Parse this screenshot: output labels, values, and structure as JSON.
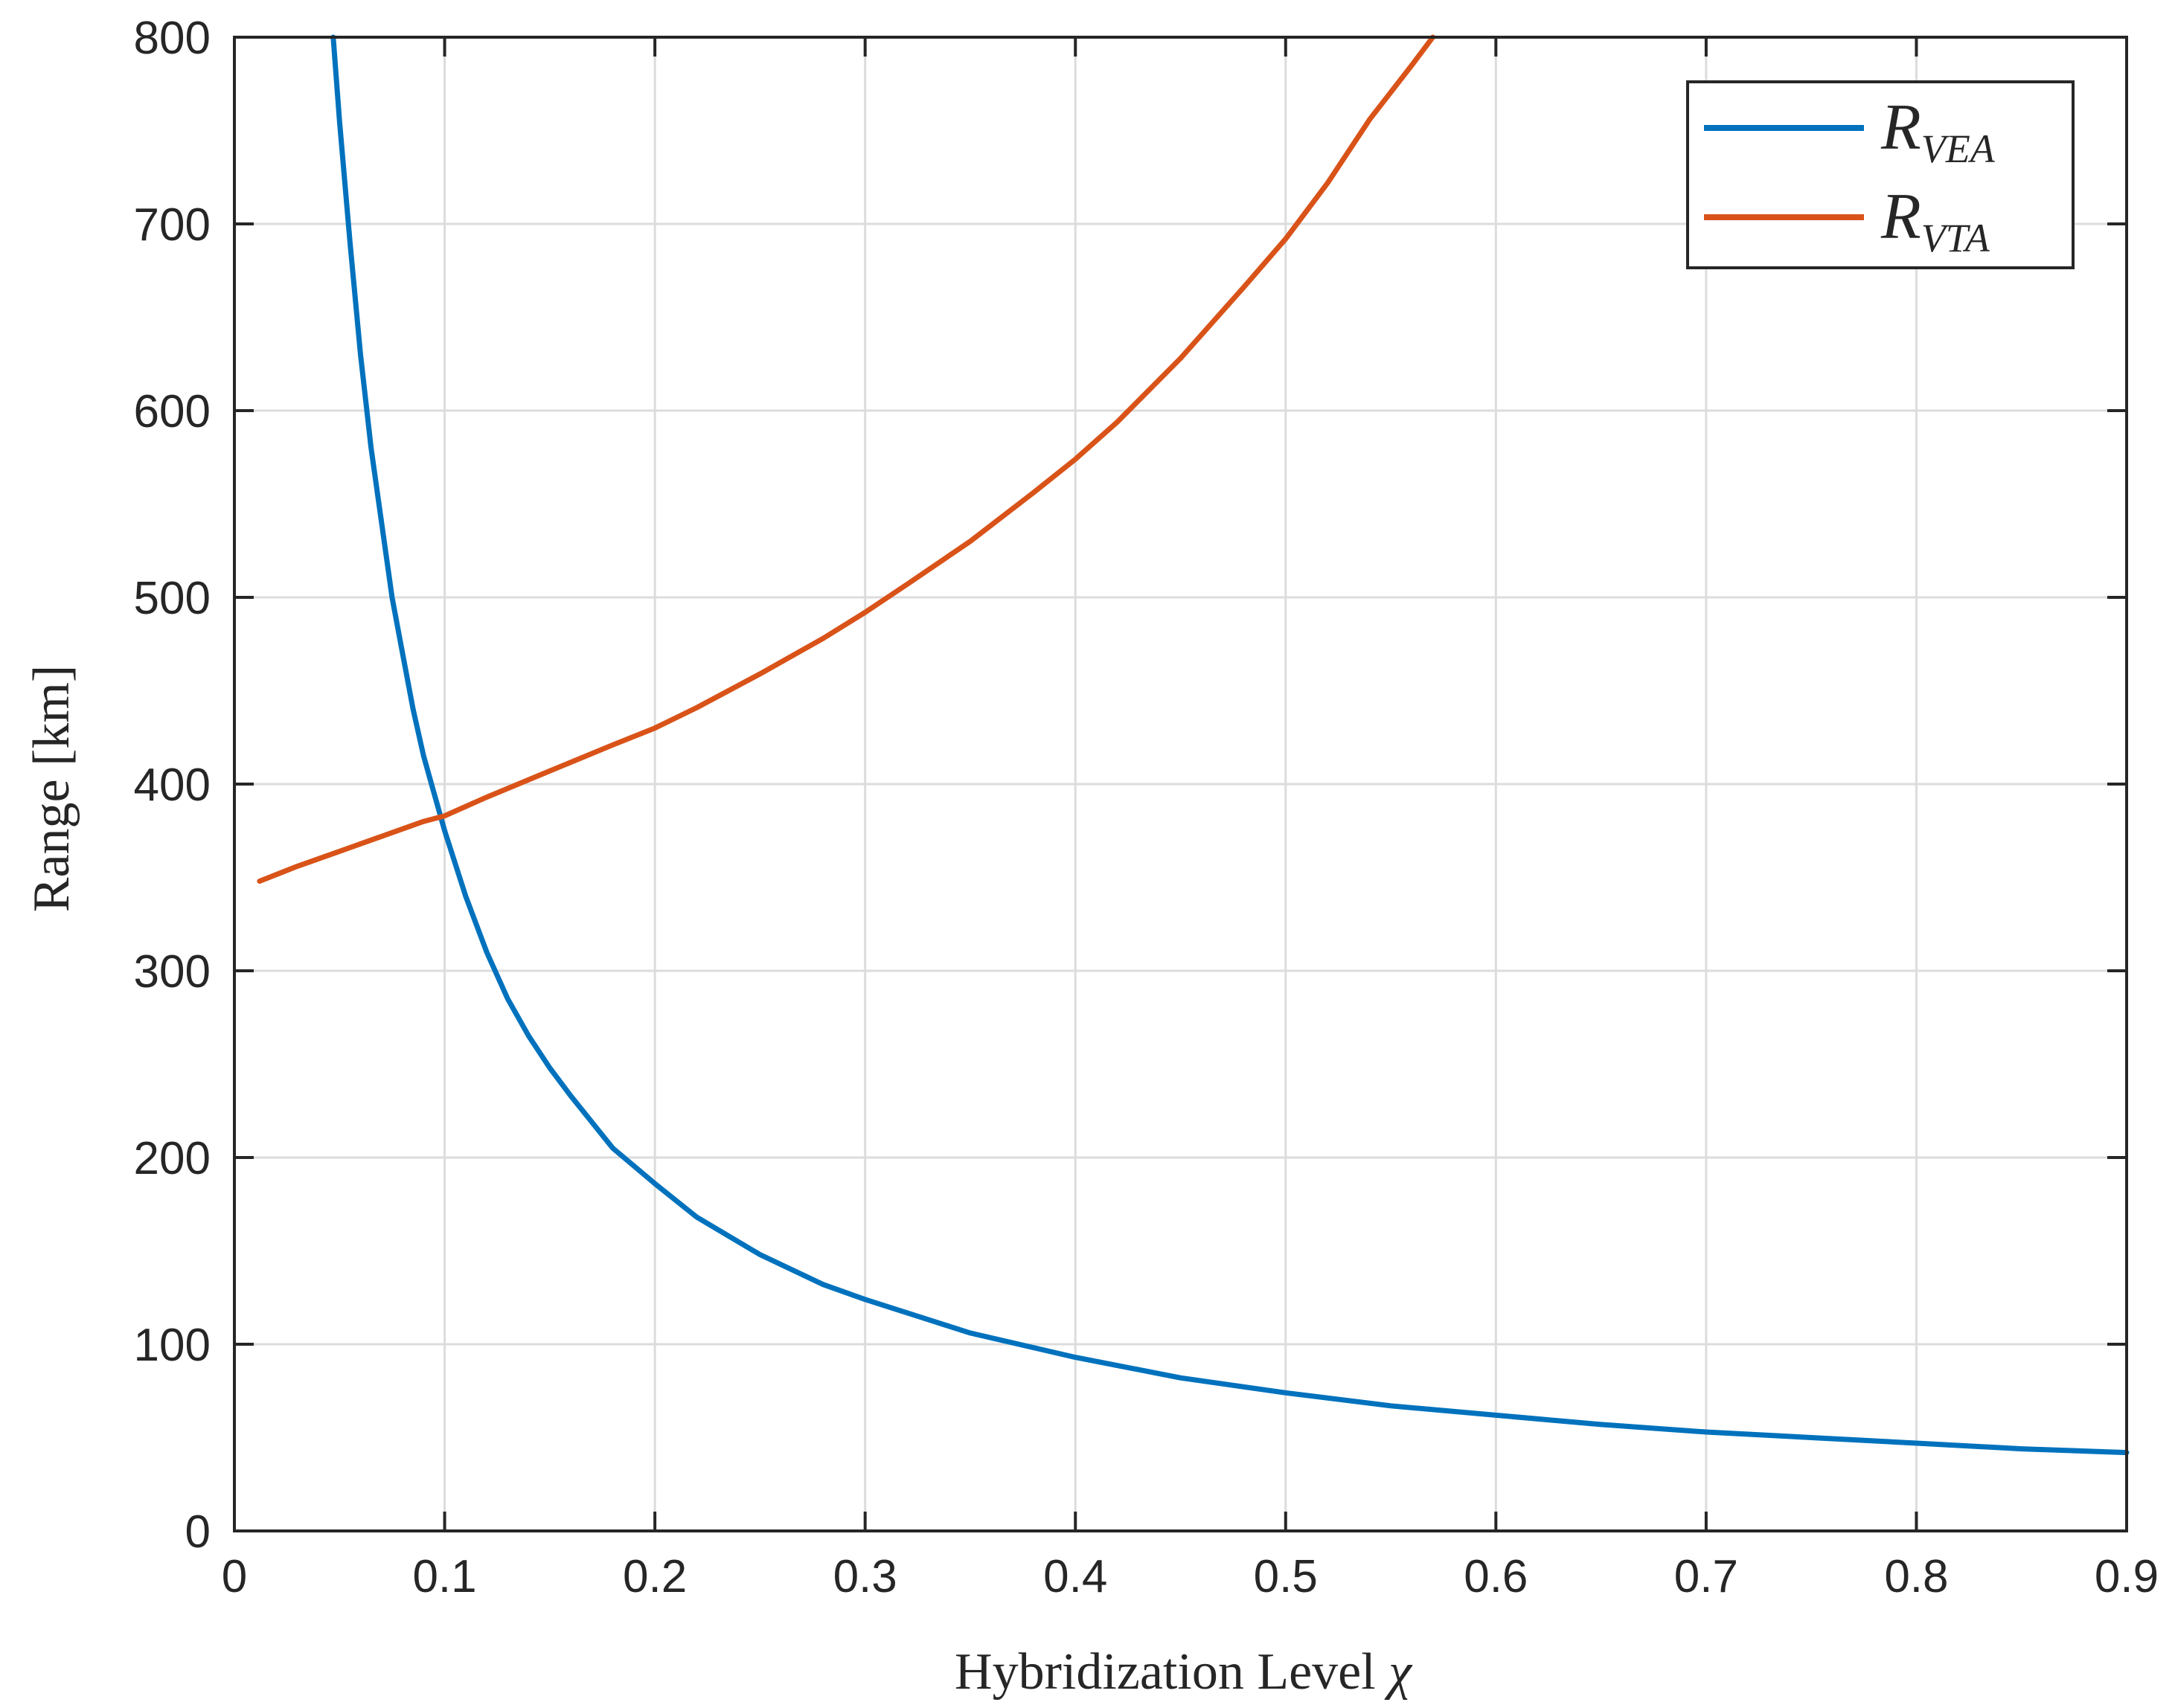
{
  "chart_data": {
    "type": "line",
    "xlabel_text": "Hybridization Level ",
    "xlabel_symbol": "χ",
    "ylabel": "Range [km]",
    "xlim": [
      0,
      0.9
    ],
    "ylim": [
      0,
      800
    ],
    "grid": true,
    "legend_position": "top-right",
    "xticks": [
      0,
      0.1,
      0.2,
      0.3,
      0.4,
      0.5,
      0.6,
      0.7,
      0.8,
      0.9
    ],
    "xtick_labels": [
      "0",
      "0.1",
      "0.2",
      "0.3",
      "0.4",
      "0.5",
      "0.6",
      "0.7",
      "0.8",
      "0.9"
    ],
    "yticks": [
      0,
      100,
      200,
      300,
      400,
      500,
      600,
      700,
      800
    ],
    "ytick_labels": [
      "0",
      "100",
      "200",
      "300",
      "400",
      "500",
      "600",
      "700",
      "800"
    ],
    "series": [
      {
        "name": "R_VEA",
        "legend_main": "R",
        "legend_sub": "VEA",
        "color": "#0072BD",
        "points": [
          [
            0.047,
            800
          ],
          [
            0.05,
            755
          ],
          [
            0.055,
            690
          ],
          [
            0.06,
            630
          ],
          [
            0.065,
            580
          ],
          [
            0.07,
            540
          ],
          [
            0.075,
            500
          ],
          [
            0.08,
            470
          ],
          [
            0.085,
            440
          ],
          [
            0.09,
            415
          ],
          [
            0.095,
            395
          ],
          [
            0.1,
            375
          ],
          [
            0.11,
            340
          ],
          [
            0.12,
            310
          ],
          [
            0.13,
            285
          ],
          [
            0.14,
            265
          ],
          [
            0.15,
            248
          ],
          [
            0.16,
            233
          ],
          [
            0.18,
            205
          ],
          [
            0.2,
            186
          ],
          [
            0.22,
            168
          ],
          [
            0.25,
            148
          ],
          [
            0.28,
            132
          ],
          [
            0.3,
            124
          ],
          [
            0.35,
            106
          ],
          [
            0.4,
            93
          ],
          [
            0.45,
            82
          ],
          [
            0.5,
            74
          ],
          [
            0.55,
            67
          ],
          [
            0.6,
            62
          ],
          [
            0.65,
            57
          ],
          [
            0.7,
            53
          ],
          [
            0.75,
            50
          ],
          [
            0.8,
            47
          ],
          [
            0.85,
            44
          ],
          [
            0.9,
            42
          ]
        ]
      },
      {
        "name": "R_VTA",
        "legend_main": "R",
        "legend_sub": "VTA",
        "color": "#D95319",
        "points": [
          [
            0.012,
            348
          ],
          [
            0.03,
            356
          ],
          [
            0.05,
            364
          ],
          [
            0.07,
            372
          ],
          [
            0.09,
            380
          ],
          [
            0.1,
            383
          ],
          [
            0.12,
            393
          ],
          [
            0.15,
            407
          ],
          [
            0.18,
            421
          ],
          [
            0.2,
            430
          ],
          [
            0.22,
            441
          ],
          [
            0.25,
            459
          ],
          [
            0.28,
            478
          ],
          [
            0.3,
            492
          ],
          [
            0.32,
            507
          ],
          [
            0.35,
            530
          ],
          [
            0.38,
            556
          ],
          [
            0.4,
            574
          ],
          [
            0.42,
            594
          ],
          [
            0.45,
            628
          ],
          [
            0.48,
            666
          ],
          [
            0.5,
            692
          ],
          [
            0.52,
            722
          ],
          [
            0.54,
            756
          ],
          [
            0.56,
            785
          ],
          [
            0.57,
            800
          ]
        ]
      }
    ]
  }
}
